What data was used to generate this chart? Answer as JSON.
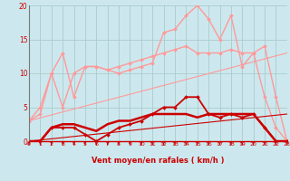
{
  "bg_color": "#cce8ee",
  "grid_color": "#aacccc",
  "x_max": 23,
  "y_max": 20,
  "xlabel": "Vent moyen/en rafales ( km/h )",
  "xlabel_color": "#cc0000",
  "tick_color": "#cc0000",
  "arrow_color": "#cc0000",
  "series": [
    {
      "label": "light_pink_zigzag",
      "color": "#ff9999",
      "linewidth": 1.0,
      "marker": "D",
      "markersize": 2.0,
      "x": [
        0,
        1,
        2,
        3,
        4,
        5,
        6,
        7,
        8,
        9,
        10,
        11,
        12,
        13,
        14,
        15,
        16,
        17,
        18,
        19,
        20,
        21,
        22,
        23
      ],
      "y": [
        3,
        5,
        10,
        13,
        6.5,
        11,
        11,
        10.5,
        10,
        10.5,
        11,
        11.5,
        16,
        16.5,
        18.5,
        20,
        18,
        15,
        18.5,
        11,
        13,
        6.5,
        2,
        0
      ]
    },
    {
      "label": "light_pink_smooth",
      "color": "#ff9999",
      "linewidth": 1.0,
      "marker": "D",
      "markersize": 2.0,
      "x": [
        0,
        1,
        2,
        3,
        4,
        5,
        6,
        7,
        8,
        9,
        10,
        11,
        12,
        13,
        14,
        15,
        16,
        17,
        18,
        19,
        20,
        21,
        22,
        23
      ],
      "y": [
        3,
        4,
        10,
        5,
        10,
        11,
        11,
        10.5,
        11,
        11.5,
        12,
        12.5,
        13,
        13.5,
        14,
        13,
        13,
        13,
        13.5,
        13,
        13,
        14,
        6.5,
        0
      ]
    },
    {
      "label": "light_pink_trend",
      "color": "#ff9999",
      "linewidth": 0.8,
      "marker": null,
      "markersize": 0,
      "x": [
        0,
        23
      ],
      "y": [
        3,
        13
      ]
    },
    {
      "label": "dark_red_zigzag",
      "color": "#cc0000",
      "linewidth": 1.3,
      "marker": "D",
      "markersize": 2.0,
      "x": [
        0,
        1,
        2,
        3,
        4,
        5,
        6,
        7,
        8,
        9,
        10,
        11,
        12,
        13,
        14,
        15,
        16,
        17,
        18,
        19,
        20,
        21,
        22,
        23
      ],
      "y": [
        0,
        0,
        2,
        2,
        2,
        1,
        0,
        1,
        2,
        2.5,
        3,
        4,
        5,
        5,
        6.5,
        6.5,
        4,
        3.5,
        4,
        3.5,
        4,
        2,
        0,
        0
      ]
    },
    {
      "label": "dark_red_smooth",
      "color": "#cc0000",
      "linewidth": 1.8,
      "marker": null,
      "markersize": 0,
      "x": [
        0,
        1,
        2,
        3,
        4,
        5,
        6,
        7,
        8,
        9,
        10,
        11,
        12,
        13,
        14,
        15,
        16,
        17,
        18,
        19,
        20,
        21,
        22,
        23
      ],
      "y": [
        0,
        0,
        2,
        2.5,
        2.5,
        2,
        1.5,
        2.5,
        3,
        3,
        3.5,
        4,
        4,
        4,
        4,
        3.5,
        4,
        4,
        4,
        4,
        4,
        2,
        0,
        0
      ]
    },
    {
      "label": "dark_red_trend",
      "color": "#cc0000",
      "linewidth": 0.8,
      "marker": null,
      "markersize": 0,
      "x": [
        0,
        23
      ],
      "y": [
        0,
        4
      ]
    }
  ]
}
